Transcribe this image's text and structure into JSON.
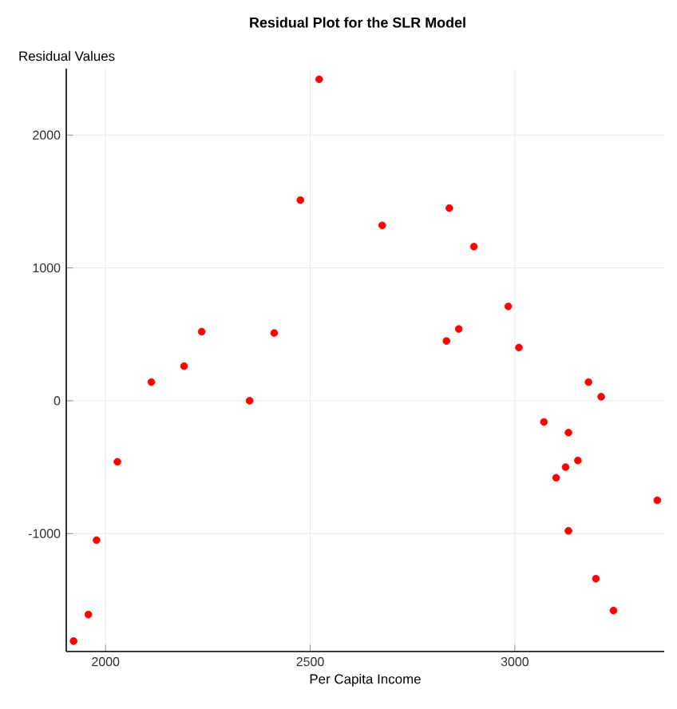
{
  "chart_data": {
    "type": "scatter",
    "title": "Residual Plot for the SLR Model",
    "xlabel": "Per Capita Income",
    "ylabel": "Residual Values",
    "x": [
      1922,
      1958,
      1978,
      2029,
      2112,
      2192,
      2235,
      2352,
      2412,
      2476,
      2522,
      2676,
      2833,
      2840,
      2863,
      2900,
      2984,
      3010,
      3071,
      3101,
      3124,
      3131,
      3131,
      3154,
      3180,
      3198,
      3211,
      3241,
      3348
    ],
    "values": [
      -1810,
      -1610,
      -1050,
      -460,
      140,
      260,
      520,
      0,
      510,
      1510,
      2420,
      1320,
      450,
      1450,
      540,
      1160,
      710,
      400,
      -160,
      -580,
      -500,
      -240,
      -980,
      -450,
      140,
      -1340,
      30,
      -1580,
      -750
    ],
    "color": "#ff0000",
    "marker": "circle",
    "grid": true,
    "xlim": [
      1904,
      3365
    ],
    "ylim": [
      -1888,
      2500
    ],
    "xticks": [
      2000,
      2500,
      3000
    ],
    "yticks": [
      -1000,
      0,
      1000,
      2000
    ]
  }
}
